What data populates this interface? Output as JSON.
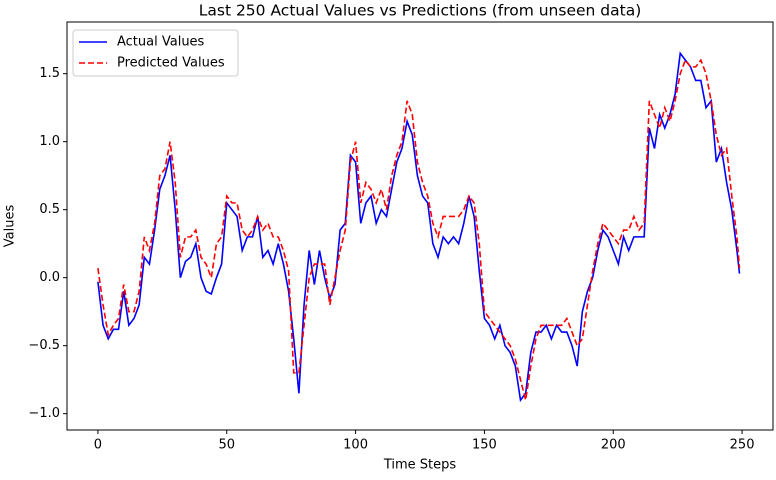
{
  "chart_data": {
    "type": "line",
    "title": "Last 250 Actual Values vs Predictions (from unseen data)",
    "x_label": "Time Steps",
    "y_label": "Values",
    "x": [
      0,
      2,
      4,
      6,
      8,
      10,
      12,
      14,
      16,
      18,
      20,
      22,
      24,
      26,
      28,
      30,
      32,
      34,
      36,
      38,
      40,
      42,
      44,
      46,
      48,
      50,
      52,
      54,
      56,
      58,
      60,
      62,
      64,
      66,
      68,
      70,
      72,
      74,
      76,
      78,
      80,
      82,
      84,
      86,
      88,
      90,
      92,
      94,
      96,
      98,
      100,
      102,
      104,
      106,
      108,
      110,
      112,
      114,
      116,
      118,
      120,
      122,
      124,
      126,
      128,
      130,
      132,
      134,
      136,
      138,
      140,
      142,
      144,
      146,
      148,
      150,
      152,
      154,
      156,
      158,
      160,
      162,
      164,
      166,
      168,
      170,
      172,
      174,
      176,
      178,
      180,
      182,
      184,
      186,
      188,
      190,
      192,
      194,
      196,
      198,
      200,
      202,
      204,
      206,
      208,
      210,
      212,
      214,
      216,
      218,
      220,
      222,
      224,
      226,
      228,
      230,
      232,
      234,
      236,
      238,
      240,
      242,
      244,
      246,
      248,
      249
    ],
    "series": [
      {
        "name": "Actual Values",
        "color": "#0000ff",
        "dash": "solid",
        "values": [
          -0.03,
          -0.35,
          -0.45,
          -0.38,
          -0.38,
          -0.1,
          -0.35,
          -0.3,
          -0.2,
          0.15,
          0.1,
          0.35,
          0.65,
          0.75,
          0.9,
          0.5,
          0.0,
          0.12,
          0.15,
          0.25,
          0.0,
          -0.1,
          -0.12,
          0.0,
          0.1,
          0.55,
          0.5,
          0.45,
          0.2,
          0.3,
          0.3,
          0.45,
          0.15,
          0.2,
          0.1,
          0.25,
          0.1,
          -0.1,
          -0.45,
          -0.85,
          -0.2,
          0.2,
          -0.05,
          0.2,
          0.0,
          -0.15,
          -0.05,
          0.35,
          0.4,
          0.9,
          0.85,
          0.4,
          0.55,
          0.6,
          0.4,
          0.5,
          0.45,
          0.65,
          0.85,
          0.95,
          1.15,
          1.05,
          0.75,
          0.6,
          0.55,
          0.25,
          0.15,
          0.3,
          0.25,
          0.3,
          0.25,
          0.4,
          0.6,
          0.45,
          0.05,
          -0.3,
          -0.35,
          -0.45,
          -0.35,
          -0.5,
          -0.55,
          -0.65,
          -0.9,
          -0.85,
          -0.55,
          -0.4,
          -0.4,
          -0.35,
          -0.45,
          -0.35,
          -0.4,
          -0.4,
          -0.5,
          -0.65,
          -0.25,
          -0.1,
          0.0,
          0.2,
          0.35,
          0.3,
          0.2,
          0.1,
          0.3,
          0.2,
          0.3,
          0.3,
          0.3,
          1.1,
          0.95,
          1.2,
          1.1,
          1.2,
          1.35,
          1.65,
          1.6,
          1.55,
          1.45,
          1.45,
          1.25,
          1.3,
          0.85,
          0.95,
          0.7,
          0.5,
          0.2,
          0.03
        ]
      },
      {
        "name": "Predicted Values",
        "color": "#ff0000",
        "dash": "dashed",
        "values": [
          0.07,
          -0.2,
          -0.42,
          -0.35,
          -0.3,
          -0.05,
          -0.25,
          -0.25,
          -0.1,
          0.3,
          0.2,
          0.4,
          0.75,
          0.8,
          1.0,
          0.7,
          0.15,
          0.3,
          0.3,
          0.35,
          0.15,
          0.1,
          0.0,
          0.25,
          0.3,
          0.6,
          0.55,
          0.55,
          0.35,
          0.3,
          0.35,
          0.45,
          0.35,
          0.4,
          0.3,
          0.3,
          0.2,
          0.05,
          -0.7,
          -0.7,
          -0.35,
          0.0,
          0.1,
          0.1,
          0.1,
          -0.2,
          0.0,
          0.2,
          0.35,
          0.85,
          1.0,
          0.55,
          0.7,
          0.65,
          0.55,
          0.65,
          0.5,
          0.75,
          0.9,
          1.0,
          1.3,
          1.2,
          0.85,
          0.7,
          0.6,
          0.4,
          0.3,
          0.45,
          0.45,
          0.45,
          0.45,
          0.5,
          0.6,
          0.55,
          0.25,
          -0.25,
          -0.3,
          -0.35,
          -0.4,
          -0.45,
          -0.5,
          -0.6,
          -0.75,
          -0.9,
          -0.65,
          -0.45,
          -0.35,
          -0.35,
          -0.35,
          -0.35,
          -0.35,
          -0.3,
          -0.4,
          -0.5,
          -0.45,
          -0.2,
          0.05,
          0.25,
          0.4,
          0.35,
          0.3,
          0.25,
          0.35,
          0.35,
          0.45,
          0.35,
          0.4,
          1.3,
          1.2,
          1.1,
          1.25,
          1.15,
          1.3,
          1.5,
          1.6,
          1.55,
          1.55,
          1.6,
          1.5,
          1.3,
          1.05,
          0.9,
          0.95,
          0.6,
          0.3,
          0.07
        ]
      }
    ],
    "xlim": [
      -12,
      262
    ],
    "xticks": [
      0,
      50,
      100,
      150,
      200,
      250
    ],
    "ylim": [
      -1.12,
      1.88
    ],
    "yticks": [
      {
        "value": -1.0,
        "label": "−1.0"
      },
      {
        "value": -0.5,
        "label": "−0.5"
      },
      {
        "value": 0.0,
        "label": "0.0"
      },
      {
        "value": 0.5,
        "label": "0.5"
      },
      {
        "value": 1.0,
        "label": "1.0"
      },
      {
        "value": 1.5,
        "label": "1.5"
      }
    ],
    "legend": "upper left",
    "grid": false
  }
}
